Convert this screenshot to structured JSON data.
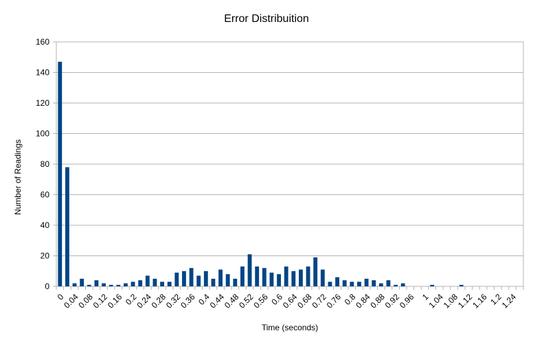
{
  "chart_data": {
    "type": "bar",
    "title": "Error Distribuition",
    "xlabel": "Time (seconds)",
    "ylabel": "Number of Readings",
    "ylim": [
      0,
      160
    ],
    "yticks": [
      0,
      20,
      40,
      60,
      80,
      100,
      120,
      140,
      160
    ],
    "grid": true,
    "legend": "none",
    "bar_color": "#004586",
    "x_tick_labels": [
      "0",
      "0.04",
      "0.08",
      "0.12",
      "0.16",
      "0.2",
      "0.24",
      "0.28",
      "0.32",
      "0.36",
      "0.4",
      "0.44",
      "0.48",
      "0.52",
      "0.56",
      "0.6",
      "0.64",
      "0.68",
      "0.72",
      "0.76",
      "0.8",
      "0.84",
      "0.88",
      "0.92",
      "0.96",
      "1",
      "1.04",
      "1.08",
      "1.12",
      "1.16",
      "1.2",
      "1.24"
    ],
    "categories": [
      "0",
      "0.02",
      "0.04",
      "0.06",
      "0.08",
      "0.1",
      "0.12",
      "0.14",
      "0.16",
      "0.18",
      "0.2",
      "0.22",
      "0.24",
      "0.26",
      "0.28",
      "0.3",
      "0.32",
      "0.34",
      "0.36",
      "0.38",
      "0.4",
      "0.42",
      "0.44",
      "0.46",
      "0.48",
      "0.5",
      "0.52",
      "0.54",
      "0.56",
      "0.58",
      "0.6",
      "0.62",
      "0.64",
      "0.66",
      "0.68",
      "0.7",
      "0.72",
      "0.74",
      "0.76",
      "0.78",
      "0.8",
      "0.82",
      "0.84",
      "0.86",
      "0.88",
      "0.9",
      "0.92",
      "0.94",
      "0.96",
      "0.98",
      "1",
      "1.02",
      "1.04",
      "1.06",
      "1.08",
      "1.1",
      "1.12",
      "1.14",
      "1.16",
      "1.18",
      "1.2",
      "1.22",
      "1.24",
      "1.26"
    ],
    "values": [
      147,
      78,
      2,
      5,
      1,
      4,
      2,
      1,
      1,
      2,
      3,
      4,
      7,
      5,
      3,
      3,
      9,
      10,
      12,
      7,
      10,
      5,
      11,
      8,
      5,
      13,
      21,
      13,
      12,
      9,
      8,
      13,
      10,
      11,
      13,
      19,
      11,
      3,
      6,
      4,
      3,
      3,
      5,
      4,
      2,
      4,
      1,
      2,
      0,
      0,
      0,
      1,
      0,
      0,
      0,
      1,
      0,
      0,
      0,
      0,
      0,
      0,
      0,
      0
    ]
  }
}
